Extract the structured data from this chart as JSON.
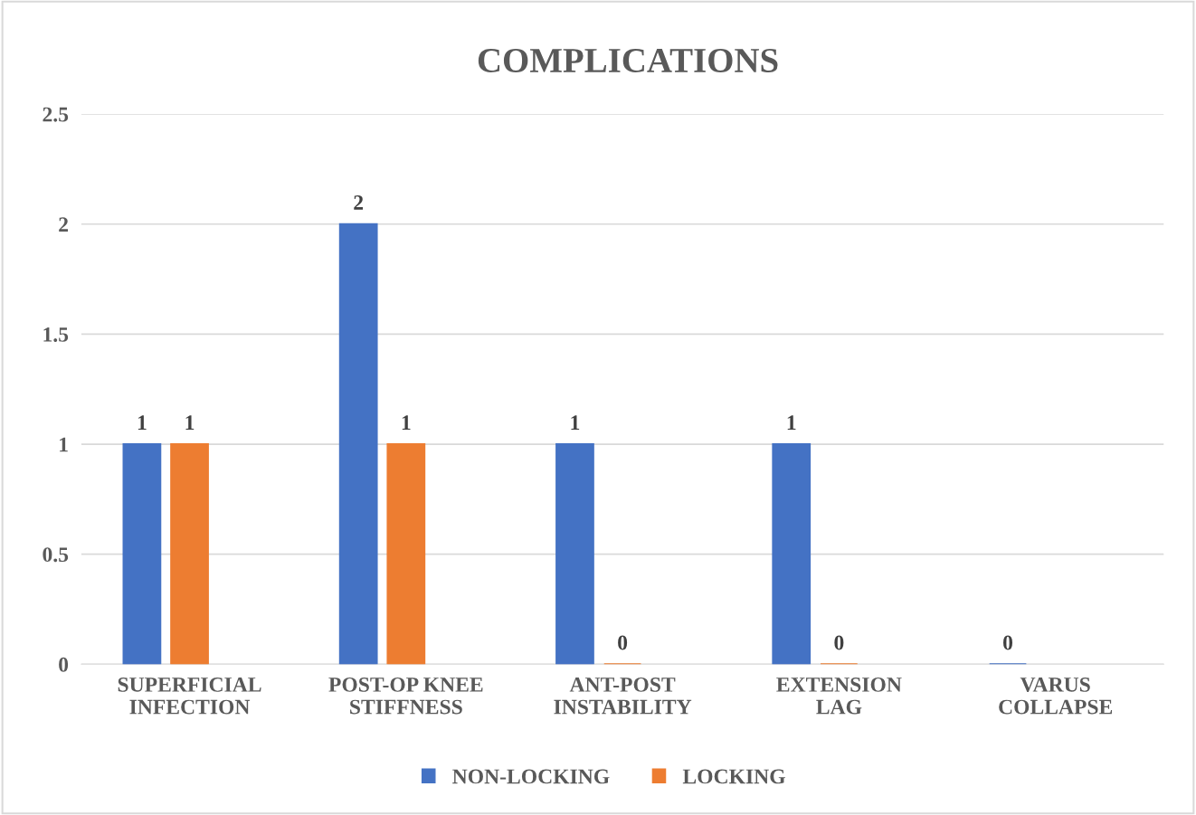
{
  "chart_data": {
    "type": "bar",
    "title": "COMPLICATIONS",
    "categories": [
      "SUPERFICIAL\nINFECTION",
      "POST-OP KNEE\nSTIFFNESS",
      "ANT-POST\nINSTABILITY",
      "EXTENSION\nLAG",
      "VARUS\nCOLLAPSE"
    ],
    "series": [
      {
        "name": "NON-LOCKING",
        "color": "#4472c4",
        "values": [
          1,
          2,
          1,
          1,
          0
        ]
      },
      {
        "name": "LOCKING",
        "color": "#ed7d31",
        "values": [
          1,
          1,
          0,
          0,
          null
        ]
      }
    ],
    "ylim": [
      0,
      2.5
    ],
    "yticks": [
      0,
      0.5,
      1,
      1.5,
      2,
      2.5
    ],
    "grid": "y",
    "legend": "bottom",
    "data_labels": true
  }
}
